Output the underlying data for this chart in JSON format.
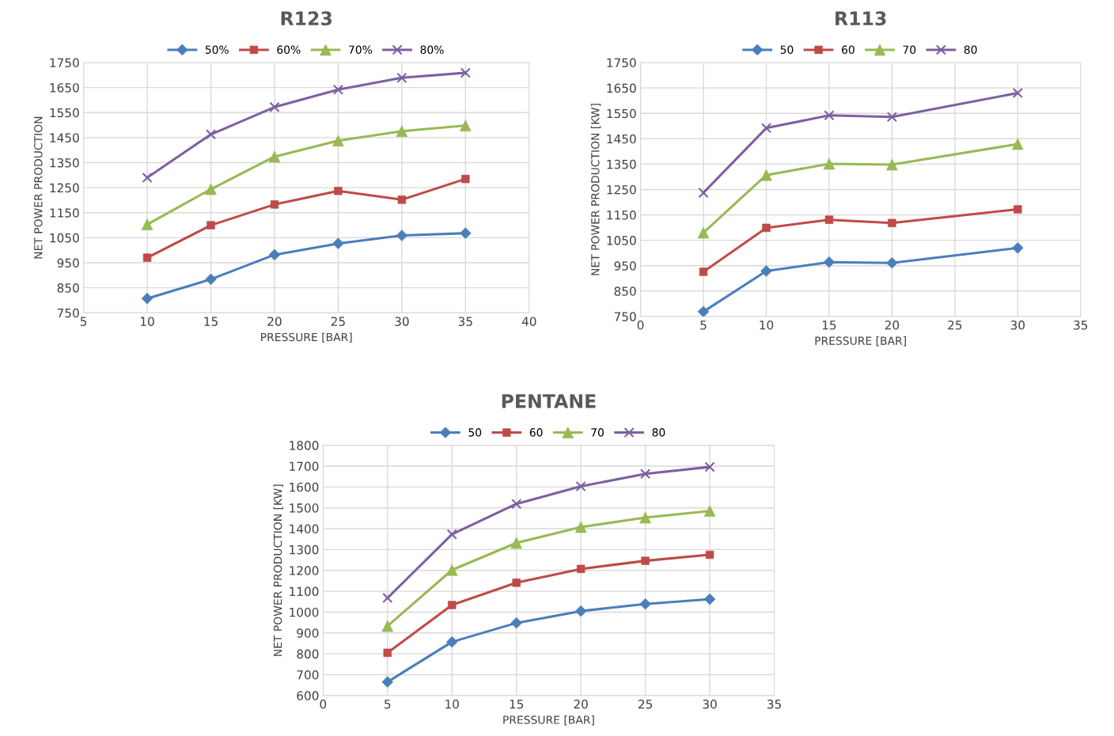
{
  "chart_data": [
    {
      "type": "line",
      "title": "R123",
      "xlabel": "PRESSURE [BAR]",
      "ylabel": "NET POWER PRODUCTION",
      "x": [
        10,
        15,
        20,
        25,
        30,
        35
      ],
      "xlim": [
        5,
        40
      ],
      "xticks": [
        5,
        10,
        15,
        20,
        25,
        30,
        35,
        40
      ],
      "ylim": [
        750,
        1750
      ],
      "yticks": [
        750,
        850,
        950,
        1050,
        1150,
        1250,
        1350,
        1450,
        1550,
        1650,
        1750
      ],
      "grid": true,
      "legend": "top",
      "line_style": "solid",
      "series": [
        {
          "name": "50%",
          "color": "#4a7ebb",
          "marker": "diamond",
          "values": [
            807,
            884,
            982,
            1027,
            1059,
            1068
          ]
        },
        {
          "name": "60%",
          "color": "#be4b48",
          "marker": "square",
          "values": [
            970,
            1100,
            1183,
            1237,
            1202,
            1285
          ]
        },
        {
          "name": "70%",
          "color": "#98b954",
          "marker": "triangle",
          "values": [
            1103,
            1244,
            1374,
            1438,
            1476,
            1498
          ]
        },
        {
          "name": "80%",
          "color": "#7d60a0",
          "marker": "cross",
          "values": [
            1290,
            1463,
            1572,
            1642,
            1689,
            1709
          ]
        }
      ]
    },
    {
      "type": "line",
      "title": "R113",
      "xlabel": "PRESSURE [BAR]",
      "ylabel": "NET POWER PRODUCTION [KW]",
      "x": [
        5,
        10,
        15,
        20,
        30
      ],
      "xlim": [
        0,
        35
      ],
      "xticks": [
        0,
        5,
        10,
        15,
        20,
        25,
        30,
        35
      ],
      "ylim": [
        750,
        1750
      ],
      "yticks": [
        750,
        850,
        950,
        1050,
        1150,
        1250,
        1350,
        1450,
        1550,
        1650,
        1750
      ],
      "grid": true,
      "legend": "top",
      "line_style": "solid",
      "series": [
        {
          "name": "50",
          "color": "#4a7ebb",
          "marker": "diamond",
          "values": [
            769,
            929,
            964,
            961,
            1020
          ]
        },
        {
          "name": "60",
          "color": "#be4b48",
          "marker": "square",
          "values": [
            926,
            1099,
            1131,
            1118,
            1172
          ]
        },
        {
          "name": "70",
          "color": "#98b954",
          "marker": "triangle",
          "values": [
            1080,
            1307,
            1351,
            1348,
            1429
          ]
        },
        {
          "name": "80",
          "color": "#7d60a0",
          "marker": "cross",
          "values": [
            1237,
            1492,
            1542,
            1536,
            1630
          ]
        }
      ]
    },
    {
      "type": "line",
      "title": "PENTANE",
      "xlabel": "PRESSURE [BAR]",
      "ylabel": "NET POWER PRODUCTION [KW]",
      "x": [
        5,
        10,
        15,
        20,
        25,
        30
      ],
      "xlim": [
        0,
        35
      ],
      "xticks": [
        0,
        5,
        10,
        15,
        20,
        25,
        30,
        35
      ],
      "ylim": [
        600,
        1800
      ],
      "yticks": [
        600,
        700,
        800,
        900,
        1000,
        1100,
        1200,
        1300,
        1400,
        1500,
        1600,
        1700,
        1800
      ],
      "grid": true,
      "legend": "top",
      "line_style": "solid",
      "series": [
        {
          "name": "50",
          "color": "#4a7ebb",
          "marker": "diamond",
          "values": [
            665,
            857,
            948,
            1005,
            1039,
            1062
          ]
        },
        {
          "name": "60",
          "color": "#be4b48",
          "marker": "square",
          "values": [
            805,
            1034,
            1141,
            1207,
            1246,
            1275
          ]
        },
        {
          "name": "70",
          "color": "#98b954",
          "marker": "triangle",
          "values": [
            933,
            1202,
            1332,
            1408,
            1453,
            1485
          ]
        },
        {
          "name": "80",
          "color": "#7d60a0",
          "marker": "cross",
          "values": [
            1068,
            1373,
            1519,
            1603,
            1663,
            1696
          ]
        }
      ]
    }
  ]
}
